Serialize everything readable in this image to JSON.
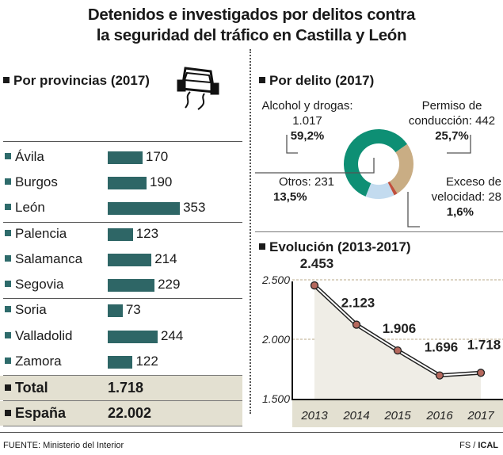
{
  "title": [
    "Detenidos e investigados por delitos contra",
    "la seguridad del tráfico en Castilla y León"
  ],
  "colors": {
    "bar": "#2e6666",
    "alcohol": "#0e8f74",
    "permiso": "#c9ad84",
    "velocidad": "#c0503d",
    "otros": "#c3dbef",
    "band": "#e3e0d1",
    "plot_fill": "#efede6",
    "point": "#b5685d"
  },
  "icons": {
    "car": "skidding-car-icon"
  },
  "chart_data": [
    {
      "type": "bar",
      "title": "Por provincias (2017)",
      "orientation": "horizontal",
      "categories": [
        "Ávila",
        "Burgos",
        "León",
        "Palencia",
        "Salamanca",
        "Segovia",
        "Soria",
        "Valladolid",
        "Zamora"
      ],
      "values": [
        170,
        190,
        353,
        123,
        214,
        229,
        73,
        244,
        122
      ],
      "value_labels": [
        "170",
        "190",
        "353",
        "123",
        "214",
        "229",
        "73",
        "244",
        "122"
      ],
      "totals": [
        {
          "label": "Total",
          "value": "1.718"
        },
        {
          "label": "España",
          "value": "22.002"
        }
      ]
    },
    {
      "type": "pie",
      "donut": true,
      "title": "Por delito (2017)",
      "slices": [
        {
          "label": "Alcohol y drogas:",
          "count": "1.017",
          "value": 1017,
          "percent": "59,2%"
        },
        {
          "label": "Permiso de conducción:",
          "count": "442",
          "value": 442,
          "percent": "25,7%"
        },
        {
          "label": "Exceso de velocidad:",
          "count": "28",
          "value": 28,
          "percent": "1,6%"
        },
        {
          "label": "Otros:",
          "count": "231",
          "value": 231,
          "percent": "13,5%"
        }
      ]
    },
    {
      "type": "line",
      "title": "Evolución (2013-2017)",
      "x": [
        "2013",
        "2014",
        "2015",
        "2016",
        "2017"
      ],
      "y": [
        2453,
        2123,
        1906,
        1696,
        1718
      ],
      "data_labels": [
        "2.453",
        "2.123",
        "1.906",
        "1.696",
        "1.718"
      ],
      "ylim": [
        1500,
        2500
      ],
      "yticks": [
        "1.500",
        "2.000",
        "2.500"
      ],
      "grid": true
    }
  ],
  "footer": {
    "source": "FUENTE: Ministerio del Interior",
    "credit_a": "FS /",
    "credit_b": "ICAL"
  }
}
